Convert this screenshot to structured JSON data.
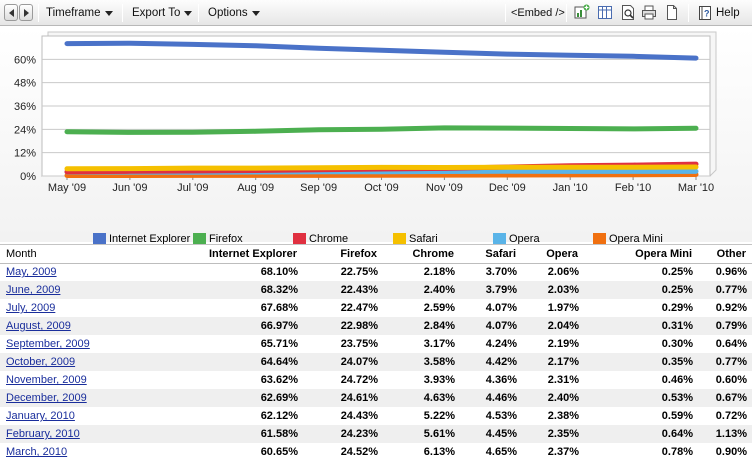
{
  "toolbar": {
    "timeframe_label": "Timeframe",
    "export_label": "Export To",
    "options_label": "Options",
    "embed_label": "<Embed />",
    "help_label": "Help"
  },
  "colors": {
    "internet_explorer": "#4a72c8",
    "firefox": "#4caf50",
    "chrome": "#e03040",
    "safari": "#f5c000",
    "opera": "#5ab4e8",
    "opera_mini": "#f07010"
  },
  "chart_data": {
    "type": "line",
    "categories": [
      "May '09",
      "Jun '09",
      "Jul '09",
      "Aug '09",
      "Sep '09",
      "Oct '09",
      "Nov '09",
      "Dec '09",
      "Jan '10",
      "Feb '10",
      "Mar '10"
    ],
    "ylim": [
      0,
      72
    ],
    "yticks": [
      "0%",
      "12%",
      "24%",
      "36%",
      "48%",
      "60%"
    ],
    "ytick_values": [
      0,
      12,
      24,
      36,
      48,
      60
    ],
    "grid": true,
    "legend_placement": "bottom",
    "series": [
      {
        "name": "Internet Explorer",
        "key": "internet_explorer",
        "values": [
          68.1,
          68.32,
          67.68,
          66.97,
          65.71,
          64.64,
          63.62,
          62.69,
          62.12,
          61.58,
          60.65
        ]
      },
      {
        "name": "Firefox",
        "key": "firefox",
        "values": [
          22.75,
          22.43,
          22.47,
          22.98,
          23.75,
          24.07,
          24.72,
          24.61,
          24.43,
          24.23,
          24.52
        ]
      },
      {
        "name": "Chrome",
        "key": "chrome",
        "values": [
          2.18,
          2.4,
          2.59,
          2.84,
          3.17,
          3.58,
          3.93,
          4.63,
          5.22,
          5.61,
          6.13
        ]
      },
      {
        "name": "Safari",
        "key": "safari",
        "values": [
          3.7,
          3.79,
          4.07,
          4.07,
          4.24,
          4.42,
          4.36,
          4.46,
          4.53,
          4.45,
          4.65
        ]
      },
      {
        "name": "Opera",
        "key": "opera",
        "values": [
          2.06,
          2.03,
          1.97,
          2.04,
          2.19,
          2.17,
          2.31,
          2.4,
          2.38,
          2.35,
          2.37
        ]
      },
      {
        "name": "Opera Mini",
        "key": "opera_mini",
        "values": [
          0.25,
          0.25,
          0.29,
          0.31,
          0.3,
          0.35,
          0.46,
          0.53,
          0.59,
          0.64,
          0.78
        ]
      }
    ]
  },
  "legend": [
    {
      "label": "Internet Explorer",
      "key": "internet_explorer"
    },
    {
      "label": "Firefox",
      "key": "firefox"
    },
    {
      "label": "Chrome",
      "key": "chrome"
    },
    {
      "label": "Safari",
      "key": "safari"
    },
    {
      "label": "Opera",
      "key": "opera"
    },
    {
      "label": "Opera Mini",
      "key": "opera_mini"
    }
  ],
  "table": {
    "headers": [
      "Month",
      "Internet Explorer",
      "Firefox",
      "Chrome",
      "Safari",
      "Opera",
      "Opera Mini",
      "Other"
    ],
    "rows": [
      [
        "May, 2009",
        "68.10%",
        "22.75%",
        "2.18%",
        "3.70%",
        "2.06%",
        "0.25%",
        "0.96%"
      ],
      [
        "June, 2009",
        "68.32%",
        "22.43%",
        "2.40%",
        "3.79%",
        "2.03%",
        "0.25%",
        "0.77%"
      ],
      [
        "July, 2009",
        "67.68%",
        "22.47%",
        "2.59%",
        "4.07%",
        "1.97%",
        "0.29%",
        "0.92%"
      ],
      [
        "August, 2009",
        "66.97%",
        "22.98%",
        "2.84%",
        "4.07%",
        "2.04%",
        "0.31%",
        "0.79%"
      ],
      [
        "September, 2009",
        "65.71%",
        "23.75%",
        "3.17%",
        "4.24%",
        "2.19%",
        "0.30%",
        "0.64%"
      ],
      [
        "October, 2009",
        "64.64%",
        "24.07%",
        "3.58%",
        "4.42%",
        "2.17%",
        "0.35%",
        "0.77%"
      ],
      [
        "November, 2009",
        "63.62%",
        "24.72%",
        "3.93%",
        "4.36%",
        "2.31%",
        "0.46%",
        "0.60%"
      ],
      [
        "December, 2009",
        "62.69%",
        "24.61%",
        "4.63%",
        "4.46%",
        "2.40%",
        "0.53%",
        "0.67%"
      ],
      [
        "January, 2010",
        "62.12%",
        "24.43%",
        "5.22%",
        "4.53%",
        "2.38%",
        "0.59%",
        "0.72%"
      ],
      [
        "February, 2010",
        "61.58%",
        "24.23%",
        "5.61%",
        "4.45%",
        "2.35%",
        "0.64%",
        "1.13%"
      ],
      [
        "March, 2010",
        "60.65%",
        "24.52%",
        "6.13%",
        "4.65%",
        "2.37%",
        "0.78%",
        "0.90%"
      ]
    ]
  }
}
